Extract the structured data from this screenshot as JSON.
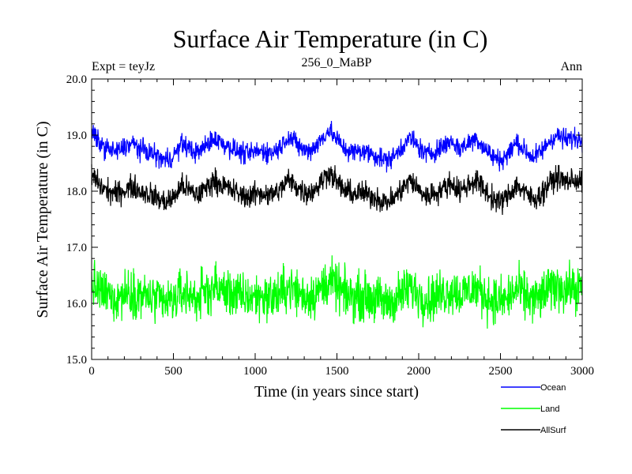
{
  "chart_data": {
    "type": "line",
    "title": "Surface Air Temperature (in C)",
    "subtitle_left": "Expt = teyJz",
    "subtitle_center": "256_0_MaBP",
    "subtitle_right": "Ann",
    "xlabel": "Time (in years since start)",
    "ylabel": "Surface Air Temperature (in C)",
    "xlim": [
      0,
      3000
    ],
    "ylim": [
      15.0,
      20.0
    ],
    "x_ticks": [
      0,
      500,
      1000,
      1500,
      2000,
      2500,
      3000
    ],
    "x_tick_labels": [
      "0",
      "500",
      "1000",
      "1500",
      "2000",
      "2500",
      "3000"
    ],
    "y_ticks": [
      15.0,
      16.0,
      17.0,
      18.0,
      19.0,
      20.0
    ],
    "y_tick_labels": [
      "15.0",
      "16.0",
      "17.0",
      "18.0",
      "19.0",
      "20.0"
    ],
    "legend_position": "bottom-right",
    "x": [
      0,
      50,
      100,
      150,
      200,
      250,
      300,
      350,
      400,
      450,
      500,
      550,
      600,
      650,
      700,
      750,
      800,
      850,
      900,
      950,
      1000,
      1050,
      1100,
      1150,
      1200,
      1250,
      1300,
      1350,
      1400,
      1450,
      1500,
      1550,
      1600,
      1650,
      1700,
      1750,
      1800,
      1850,
      1900,
      1950,
      2000,
      2050,
      2100,
      2150,
      2200,
      2250,
      2300,
      2350,
      2400,
      2450,
      2500,
      2550,
      2600,
      2650,
      2700,
      2750,
      2800,
      2850,
      2900,
      2950,
      3000
    ],
    "series": [
      {
        "name": "Ocean",
        "color": "#0000ff",
        "values": [
          19.05,
          18.85,
          18.75,
          18.7,
          18.78,
          18.85,
          18.75,
          18.7,
          18.62,
          18.55,
          18.62,
          18.85,
          18.75,
          18.68,
          18.82,
          18.95,
          18.85,
          18.78,
          18.7,
          18.65,
          18.7,
          18.72,
          18.68,
          18.78,
          18.98,
          18.85,
          18.72,
          18.75,
          18.9,
          19.1,
          18.92,
          18.75,
          18.7,
          18.72,
          18.68,
          18.62,
          18.55,
          18.62,
          18.8,
          18.95,
          18.78,
          18.65,
          18.72,
          18.8,
          18.9,
          18.75,
          18.85,
          18.95,
          18.78,
          18.62,
          18.55,
          18.68,
          18.88,
          18.72,
          18.6,
          18.7,
          18.9,
          19.0,
          18.92,
          18.95,
          18.92
        ]
      },
      {
        "name": "Land",
        "color": "#00ff00",
        "values": [
          16.35,
          16.2,
          16.15,
          16.1,
          16.18,
          16.22,
          16.15,
          16.1,
          16.05,
          16.0,
          16.05,
          16.2,
          16.15,
          16.1,
          16.2,
          16.3,
          16.22,
          16.18,
          16.12,
          16.1,
          16.12,
          16.14,
          16.1,
          16.16,
          16.3,
          16.22,
          16.12,
          16.15,
          16.25,
          16.4,
          16.28,
          16.15,
          16.12,
          16.14,
          16.1,
          16.06,
          16.0,
          16.06,
          16.18,
          16.28,
          16.16,
          16.08,
          16.12,
          16.18,
          16.25,
          16.15,
          16.22,
          16.28,
          16.16,
          16.06,
          16.02,
          16.1,
          16.25,
          16.14,
          16.06,
          16.12,
          16.25,
          16.32,
          16.26,
          16.28,
          16.25
        ]
      },
      {
        "name": "AllSurf",
        "color": "#000000",
        "values": [
          18.3,
          18.1,
          18.0,
          17.95,
          18.02,
          18.08,
          18.0,
          17.95,
          17.88,
          17.8,
          17.88,
          18.1,
          18.0,
          17.93,
          18.06,
          18.2,
          18.1,
          18.03,
          17.95,
          17.9,
          17.95,
          17.97,
          17.93,
          18.02,
          18.2,
          18.1,
          17.97,
          18.0,
          18.15,
          18.35,
          18.17,
          18.0,
          17.95,
          17.97,
          17.93,
          17.87,
          17.8,
          17.87,
          18.05,
          18.2,
          18.03,
          17.9,
          17.97,
          18.05,
          18.15,
          18.0,
          18.1,
          18.2,
          18.03,
          17.87,
          17.8,
          17.93,
          18.12,
          17.97,
          17.85,
          17.95,
          18.15,
          18.25,
          18.17,
          18.2,
          18.17
        ]
      }
    ],
    "noise_amplitude": [
      0.14,
      0.32,
      0.16
    ]
  }
}
